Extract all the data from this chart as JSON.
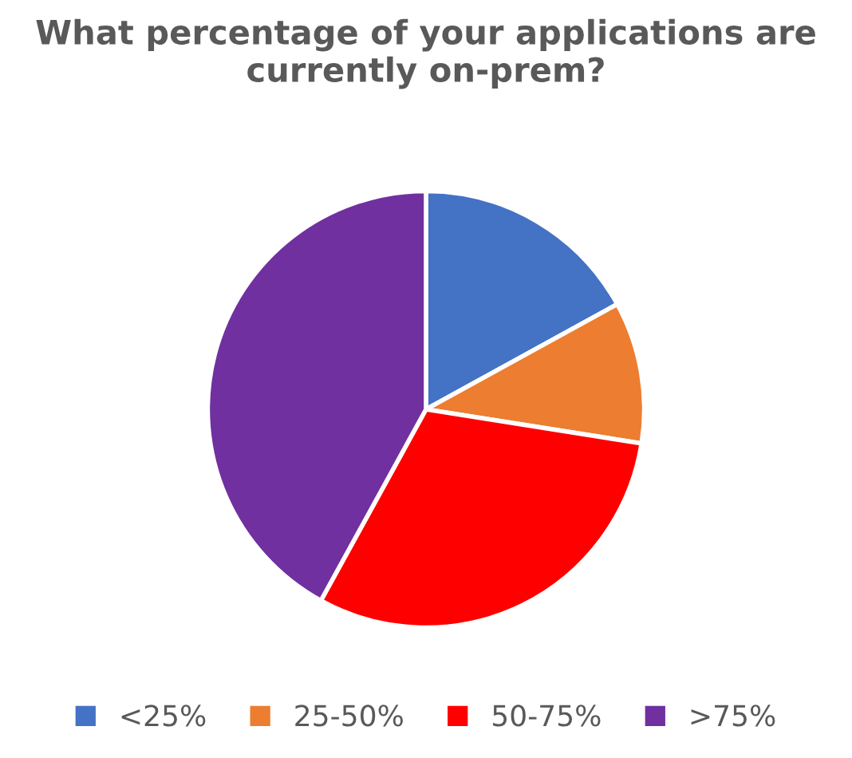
{
  "chart_data": {
    "type": "pie",
    "title": "What percentage of your applications are currently on-prem?",
    "categories": [
      "<25%",
      "25-50%",
      "50-75%",
      ">75%"
    ],
    "values": [
      17,
      10.5,
      30.5,
      42
    ],
    "colors": [
      "#4472c4",
      "#ed7d31",
      "#ff0000",
      "#7030a0"
    ],
    "legend": "bottom"
  }
}
